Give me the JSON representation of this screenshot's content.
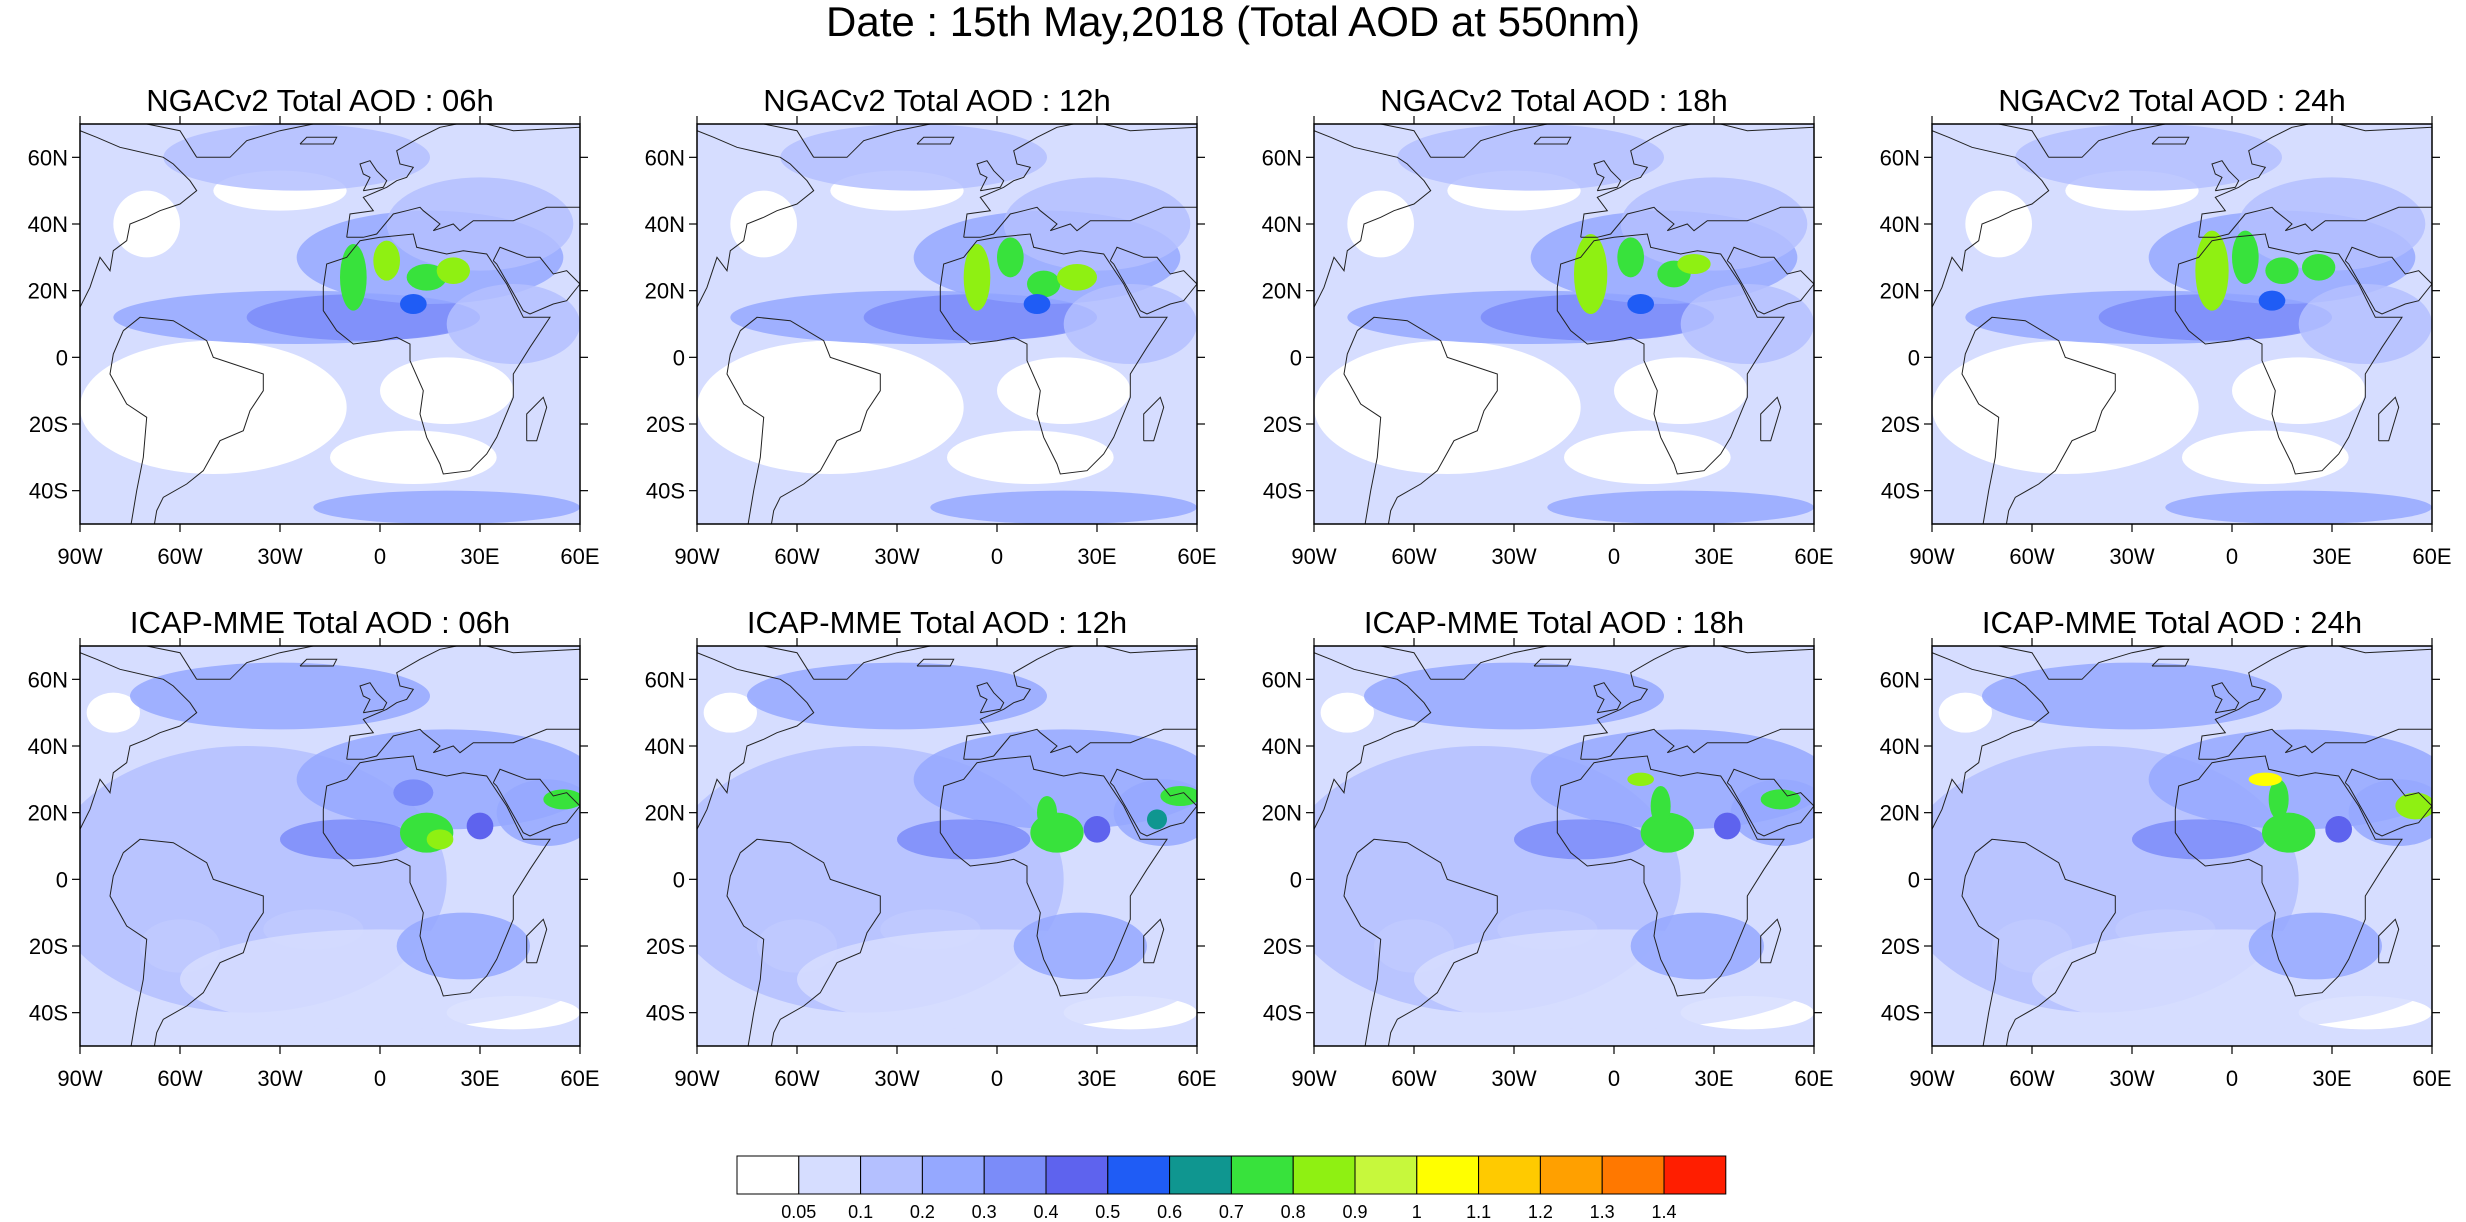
{
  "title": "Date : 15th May,2018 (Total AOD at 550nm)",
  "map": {
    "lon_range": [
      -90,
      60
    ],
    "lat_range": [
      -50,
      70
    ],
    "lon_ticks": [
      "90W",
      "60W",
      "30W",
      "0",
      "30E",
      "60E"
    ],
    "lat_ticks": [
      "60N",
      "40N",
      "20N",
      "0",
      "20S",
      "40S"
    ]
  },
  "panels": [
    {
      "model": "NGACv2",
      "title": "NGACv2 Total AOD : 06h"
    },
    {
      "model": "NGACv2",
      "title": "NGACv2 Total AOD : 12h"
    },
    {
      "model": "NGACv2",
      "title": "NGACv2 Total AOD : 18h"
    },
    {
      "model": "NGACv2",
      "title": "NGACv2 Total AOD : 24h"
    },
    {
      "model": "ICAP-MME",
      "title": "ICAP-MME Total AOD : 06h"
    },
    {
      "model": "ICAP-MME",
      "title": "ICAP-MME Total AOD : 12h"
    },
    {
      "model": "ICAP-MME",
      "title": "ICAP-MME Total AOD : 18h"
    },
    {
      "model": "ICAP-MME",
      "title": "ICAP-MME Total AOD : 24h"
    }
  ],
  "colorbar": {
    "labels": [
      "0.05",
      "0.1",
      "0.2",
      "0.3",
      "0.4",
      "0.5",
      "0.6",
      "0.7",
      "0.8",
      "0.9",
      "1",
      "1.1",
      "1.2",
      "1.3",
      "1.4"
    ],
    "colors": [
      "#ffffff",
      "#d6ddff",
      "#b4c0ff",
      "#95a8ff",
      "#7b8cf9",
      "#5e63ee",
      "#1f5cf5",
      "#0f9690",
      "#38e23c",
      "#8ff012",
      "#c7f83c",
      "#ffff00",
      "#ffca00",
      "#ffa000",
      "#ff7800",
      "#ff1e00"
    ]
  }
}
